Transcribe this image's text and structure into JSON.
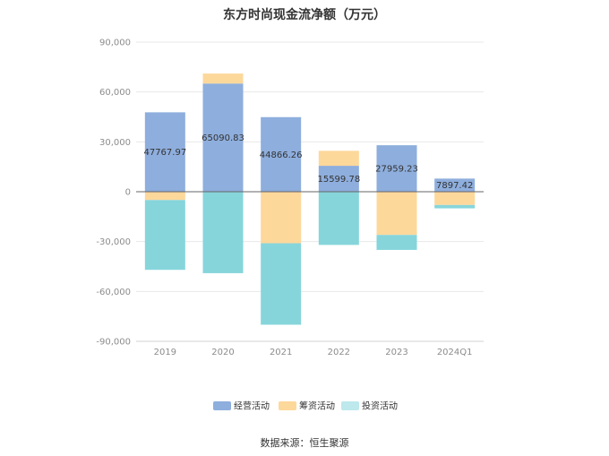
{
  "title": "东方时尚现金流净额（万元）",
  "source": "数据来源：恒生聚源",
  "colors": {
    "operating": "#8eaedd",
    "financing": "#fdd89b",
    "investing": "#86d5db",
    "investing_legend": "#bde8ec"
  },
  "chart_data": {
    "type": "bar",
    "stacked": true,
    "categories": [
      "2019",
      "2020",
      "2021",
      "2022",
      "2023",
      "2024Q1"
    ],
    "series": [
      {
        "name": "经营活动",
        "values": [
          47767.97,
          65090.83,
          44866.26,
          15599.78,
          27959.23,
          7897.42
        ]
      },
      {
        "name": "筹资活动",
        "values": [
          -5000,
          6000,
          -31000,
          9000,
          -26000,
          -8000
        ]
      },
      {
        "name": "投资活动",
        "values": [
          -42000,
          -49000,
          -49000,
          -32000,
          -9000,
          -2000
        ]
      }
    ],
    "data_labels": [
      "47767.97",
      "65090.83",
      "44866.26",
      "15599.78",
      "27959.23",
      "7897.42"
    ],
    "y_ticks": [
      "90,000",
      "60,000",
      "30,000",
      "0",
      "-30,000",
      "-60,000",
      "-90,000"
    ],
    "ylim": [
      -90000,
      90000
    ],
    "grid": true,
    "legend_position": "bottom"
  }
}
